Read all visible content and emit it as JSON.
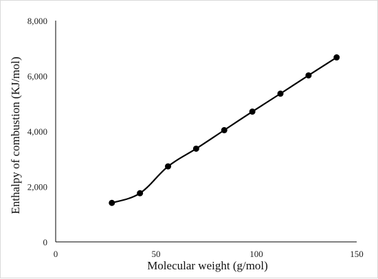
{
  "chart_data": {
    "type": "line",
    "title": "",
    "xlabel": "Molecular weight (g/mol)",
    "ylabel": "Enthalpy of combustion (KJ/mol)",
    "xlim": [
      0,
      150
    ],
    "ylim": [
      0,
      8000
    ],
    "x_ticks": [
      0,
      50,
      100,
      150
    ],
    "y_ticks": [
      0,
      2000,
      4000,
      6000,
      8000
    ],
    "x_tick_labels": [
      "0",
      "50",
      "100",
      "150"
    ],
    "y_tick_labels": [
      "0",
      "2,000",
      "4,000",
      "6,000",
      "8,000"
    ],
    "grid": false,
    "legend": "none",
    "series": [
      {
        "color": "#000000",
        "marker": "circle",
        "smooth": true,
        "x": [
          28,
          42,
          56,
          70,
          84,
          98,
          112,
          126,
          140
        ],
        "y": [
          1410,
          1760,
          2730,
          3370,
          4040,
          4710,
          5360,
          6020,
          6670
        ]
      }
    ]
  }
}
